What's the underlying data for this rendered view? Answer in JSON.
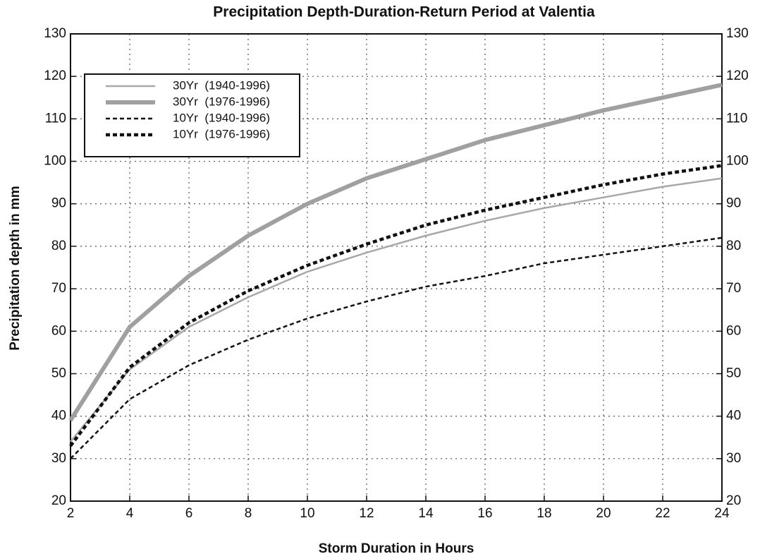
{
  "chart_data": {
    "type": "line",
    "title": "Precipitation Depth-Duration-Return Period at Valentia",
    "xlabel": "Storm Duration in Hours",
    "ylabel": "Precipitation depth in mm",
    "x": [
      2,
      4,
      6,
      8,
      10,
      12,
      14,
      16,
      18,
      20,
      22,
      24
    ],
    "series": [
      {
        "name": "30Yr  (1940-1996)",
        "color": "#a8a8a8",
        "dashed": false,
        "linewidth": 2.5,
        "values": [
          34,
          51,
          61,
          68,
          74,
          78.5,
          82.5,
          86,
          89,
          91.5,
          94,
          96
        ]
      },
      {
        "name": "30Yr  (1976-1996)",
        "color": "#a0a0a0",
        "dashed": false,
        "linewidth": 6,
        "values": [
          39,
          61,
          73,
          82.5,
          90,
          96,
          100.5,
          105,
          108.5,
          112,
          115,
          118
        ]
      },
      {
        "name": "10Yr  (1940-1996)",
        "color": "#111111",
        "dashed": true,
        "linewidth": 2.5,
        "values": [
          30,
          44,
          52,
          58,
          63,
          67,
          70.5,
          73,
          76,
          78,
          80,
          82
        ]
      },
      {
        "name": "10Yr  (1976-1996)",
        "color": "#111111",
        "dashed": true,
        "linewidth": 4.5,
        "values": [
          33,
          51.5,
          62,
          69.5,
          75.5,
          80.5,
          85,
          88.5,
          91.5,
          94.5,
          97,
          99
        ]
      }
    ],
    "xlim": [
      2,
      24
    ],
    "xticks": [
      2,
      4,
      6,
      8,
      10,
      12,
      14,
      16,
      18,
      20,
      22,
      24
    ],
    "ylim": [
      20,
      130
    ],
    "yticks": [
      20,
      30,
      40,
      50,
      60,
      70,
      80,
      90,
      100,
      110,
      120,
      130
    ],
    "y2lim": [
      20,
      130
    ],
    "y2ticks": [
      20,
      30,
      40,
      50,
      60,
      70,
      80,
      90,
      100,
      110,
      120,
      130
    ],
    "grid": true,
    "legend": "upper left"
  }
}
